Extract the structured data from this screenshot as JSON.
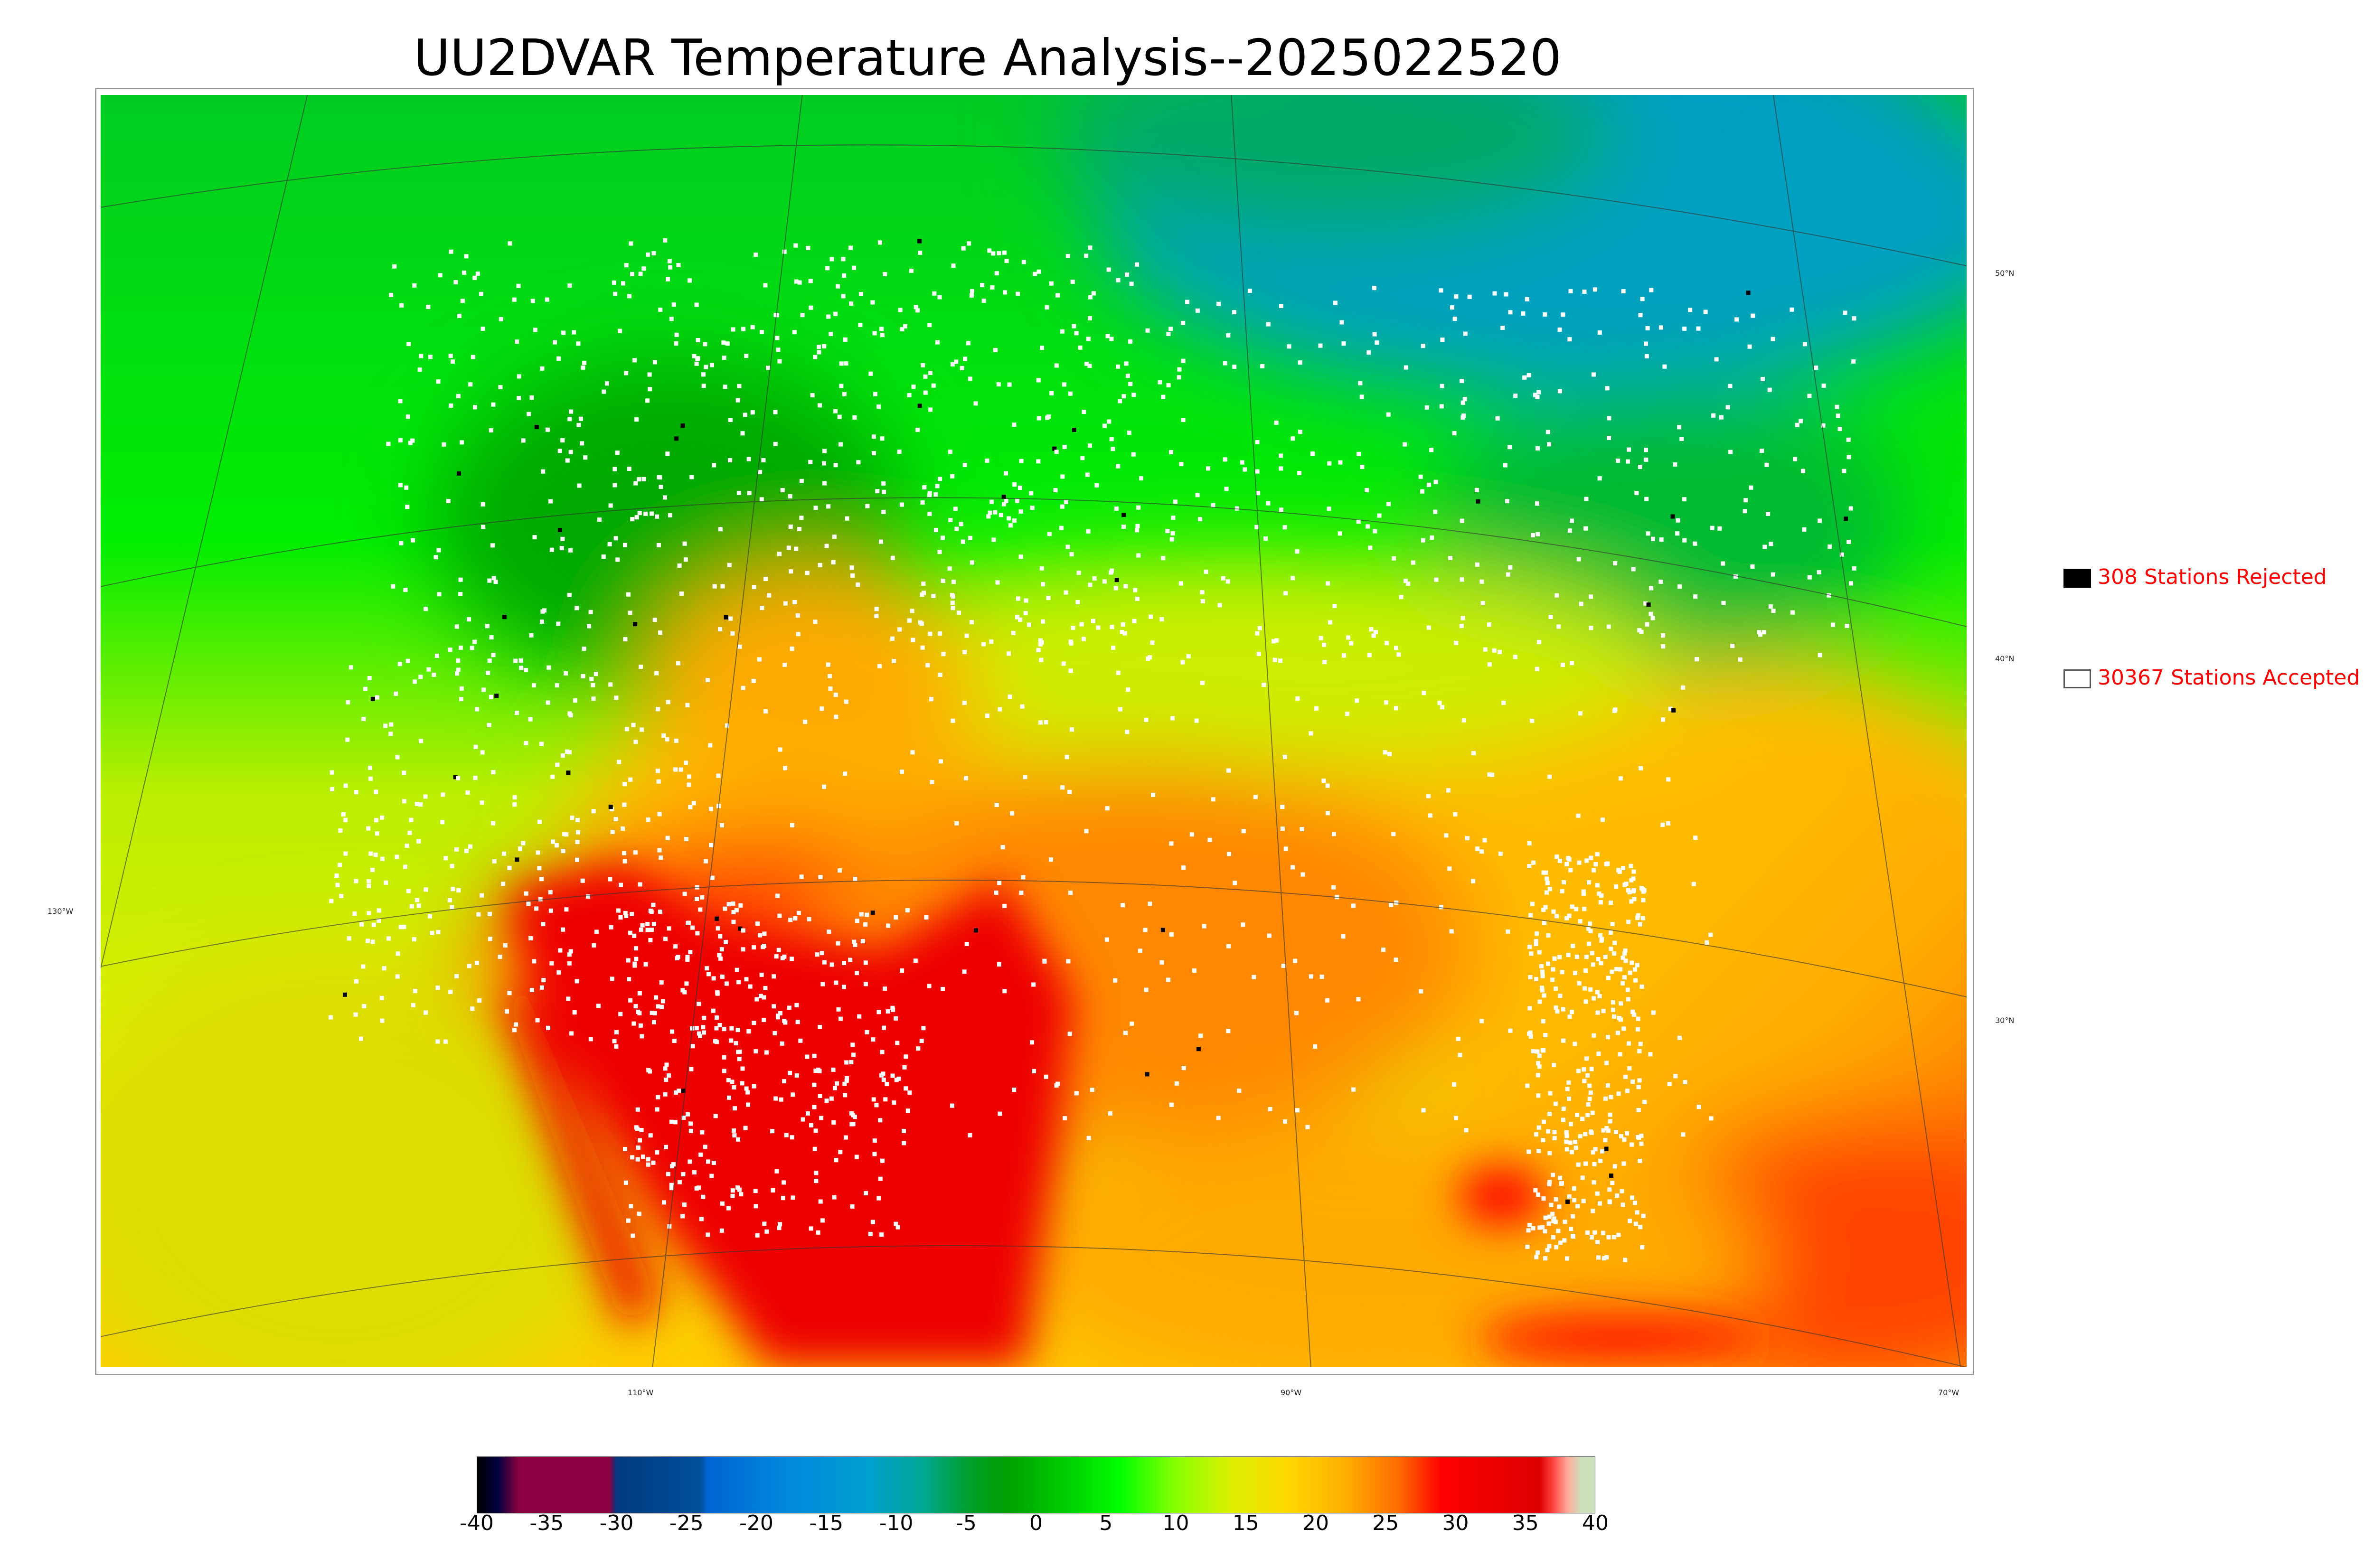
{
  "title": "UU2DVAR Temperature Analysis--2025022520",
  "map": {
    "lon_labels": [
      "130°W",
      "110°W",
      "90°W",
      "70°W"
    ],
    "lat_labels": [
      "50°N",
      "40°N",
      "30°N"
    ]
  },
  "legend": {
    "rejected": {
      "label": "308 Stations Rejected",
      "count": 308,
      "color": "#000000"
    },
    "accepted": {
      "label": "30367 Stations Accepted",
      "count": 30367,
      "color": "#ffffff"
    }
  },
  "colorbar": {
    "ticks": [
      "-40",
      "-35",
      "-30",
      "-25",
      "-20",
      "-15",
      "-10",
      "-5",
      "0",
      "5",
      "10",
      "15",
      "20",
      "25",
      "30",
      "35",
      "40"
    ],
    "range": [
      -40,
      40
    ],
    "stops": [
      {
        "v": -40,
        "c": "#000000"
      },
      {
        "v": -38.5,
        "c": "#000040"
      },
      {
        "v": -37,
        "c": "#8a0040"
      },
      {
        "v": -30.5,
        "c": "#8a0040"
      },
      {
        "v": -30,
        "c": "#003a80"
      },
      {
        "v": -24,
        "c": "#00509a"
      },
      {
        "v": -23.5,
        "c": "#0064d2"
      },
      {
        "v": -18,
        "c": "#0088dd"
      },
      {
        "v": -12,
        "c": "#00a0d0"
      },
      {
        "v": -8,
        "c": "#00a890"
      },
      {
        "v": -5,
        "c": "#00a030"
      },
      {
        "v": -2,
        "c": "#00a000"
      },
      {
        "v": 2,
        "c": "#00cc00"
      },
      {
        "v": 6,
        "c": "#00ff00"
      },
      {
        "v": 10,
        "c": "#88ff00"
      },
      {
        "v": 14,
        "c": "#ddf000"
      },
      {
        "v": 18,
        "c": "#ffd800"
      },
      {
        "v": 22,
        "c": "#ffb000"
      },
      {
        "v": 26,
        "c": "#ff6a00"
      },
      {
        "v": 29,
        "c": "#ff0000"
      },
      {
        "v": 36,
        "c": "#dd0000"
      },
      {
        "v": 37,
        "c": "#ff4444"
      },
      {
        "v": 38,
        "c": "#ffaa99"
      },
      {
        "v": 39,
        "c": "#cce0bb"
      },
      {
        "v": 40,
        "c": "#cce0bb"
      }
    ]
  }
}
